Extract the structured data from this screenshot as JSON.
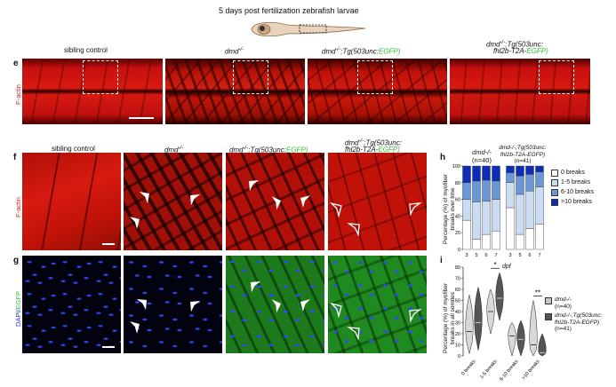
{
  "header": {
    "title": "5 days post fertilization zebrafish larvae"
  },
  "panel_letters": {
    "e": "e",
    "f": "f",
    "g": "g",
    "h": "h",
    "i": "i"
  },
  "row_e": {
    "stain_label": "F-actin",
    "columns": [
      {
        "prefix": "sibling control",
        "mid": "",
        "suffix": "",
        "tail": ""
      },
      {
        "prefix": "dmd",
        "mid": "-/-",
        "suffix": "",
        "tail": ""
      },
      {
        "prefix": "dmd",
        "mid": "-/-",
        "suffix": ";Tg(503unc:",
        "tail": "EGFP)"
      },
      {
        "prefix": "dmd",
        "mid": "-/-",
        "suffix": ";Tg(503unc:",
        "tail": "fhl2b-T2A-EGFP)"
      }
    ]
  },
  "row_f": {
    "stain_label": "F-actin",
    "columns": [
      {
        "label": "sibling control"
      },
      {
        "label": "dmd-/-"
      },
      {
        "label_a": "dmd-/-;Tg(503unc:",
        "label_b": "EGFP)"
      },
      {
        "label_a": "dmd-/-;Tg(503unc:",
        "label_b": "fhl2b-T2A-EGFP)"
      }
    ]
  },
  "row_g": {
    "stain_a": "DAPI/",
    "stain_b": "EGFP"
  },
  "chart_h": {
    "group1": {
      "line1": "dmd-/-",
      "line2": "(n=40)"
    },
    "group2": {
      "line1": "dmd-/-;Tg(503unc:",
      "line2": "fhl2b-T2A-EGFP)",
      "line3": "(n=41)"
    },
    "ylabel_1": "Percentage (%) of myofiber",
    "ylabel_2": "breaks over time",
    "xlabel": "dpf",
    "yticks": [
      "0",
      "20",
      "40",
      "60",
      "80",
      "100"
    ],
    "xticks": [
      "3",
      "5",
      "6",
      "7",
      "3",
      "5",
      "6",
      "7"
    ],
    "legend": [
      "0 breaks",
      "1-5 breaks",
      "6-10 breaks",
      ">10 breaks"
    ],
    "colors": [
      "#ffffff",
      "#c9dcf2",
      "#6a97d6",
      "#0d2db8"
    ]
  },
  "chart_i": {
    "ylabel_1": "Percentage (%) of myofiber",
    "ylabel_2": "breaks in all somites",
    "yticks": [
      "0",
      "10",
      "20",
      "30",
      "40",
      "50",
      "60",
      "70",
      "80"
    ],
    "categories": [
      "0 breaks",
      "1-5 breaks",
      "6-10 breaks",
      ">10 breaks"
    ],
    "sig": [
      "*",
      "**"
    ],
    "legend_1": "dmd-/-",
    "legend_1n": "(n=40)",
    "legend_2a": "dmd-/-;Tg(503unc:",
    "legend_2b": "fhl2b-T2A-EGFP)",
    "legend_2n": "(n=41)"
  },
  "chart_data": [
    {
      "type": "bar",
      "stacked": true,
      "categories": [
        "3",
        "5",
        "6",
        "7",
        "3",
        "5",
        "6",
        "7"
      ],
      "groups": [
        "dmd-/- (n=40)",
        "dmd-/-;Tg(503unc:fhl2b-T2A-EGFP) (n=41)"
      ],
      "series": [
        {
          "name": "0 breaks",
          "values": [
            35,
            12,
            18,
            22,
            50,
            18,
            25,
            30
          ]
        },
        {
          "name": "1-5 breaks",
          "values": [
            25,
            45,
            40,
            38,
            30,
            48,
            45,
            45
          ]
        },
        {
          "name": "6-10 breaks",
          "values": [
            20,
            25,
            25,
            22,
            12,
            22,
            20,
            18
          ]
        },
        {
          "name": ">10 breaks",
          "values": [
            20,
            18,
            17,
            18,
            8,
            12,
            10,
            7
          ]
        }
      ],
      "xlabel": "dpf",
      "ylabel": "Percentage (%) of myofiber breaks over time",
      "ylim": [
        0,
        100
      ]
    },
    {
      "type": "violin",
      "categories": [
        "0 breaks",
        "1-5 breaks",
        "6-10 breaks",
        ">10 breaks"
      ],
      "series": [
        {
          "name": "dmd-/- (n=40)",
          "medians": [
            22,
            40,
            18,
            10
          ],
          "min": [
            2,
            20,
            0,
            0
          ],
          "max": [
            55,
            60,
            30,
            50
          ]
        },
        {
          "name": "dmd-/-;Tg(503unc:fhl2b-T2A-EGFP) (n=41)",
          "medians": [
            30,
            52,
            15,
            3
          ],
          "min": [
            5,
            32,
            0,
            0
          ],
          "max": [
            62,
            75,
            32,
            20
          ]
        }
      ],
      "ylabel": "Percentage (%) of myofiber breaks in all somites",
      "ylim": [
        0,
        80
      ]
    }
  ]
}
